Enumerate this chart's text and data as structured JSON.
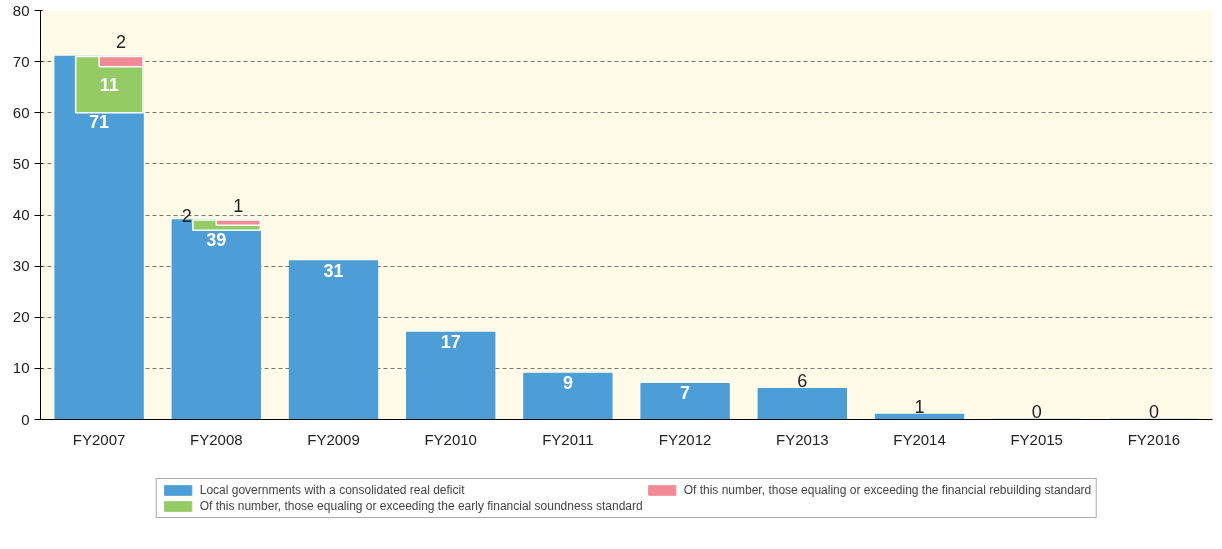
{
  "chart_data": {
    "type": "bar",
    "categories": [
      "FY2007",
      "FY2008",
      "FY2009",
      "FY2010",
      "FY2011",
      "FY2012",
      "FY2013",
      "FY2014",
      "FY2015",
      "FY2016"
    ],
    "series": [
      {
        "name": "Local governments with a consolidated real deficit",
        "color": "#4d9ed6",
        "values": [
          71,
          39,
          31,
          17,
          9,
          7,
          6,
          1,
          0,
          0
        ]
      },
      {
        "name": "Of this number, those equaling or exceeding the early financial soundness standard",
        "color": "#95cb65",
        "values": [
          11,
          2,
          null,
          null,
          null,
          null,
          null,
          null,
          null,
          null
        ],
        "base": [
          60,
          37,
          null,
          null,
          null,
          null,
          null,
          null,
          null,
          null
        ]
      },
      {
        "name": "Of this number, those equaling or exceeding the financial rebuilding standard",
        "color": "#f28a96",
        "values": [
          2,
          1,
          null,
          null,
          null,
          null,
          null,
          null,
          null,
          null
        ],
        "base": [
          69,
          38,
          null,
          null,
          null,
          null,
          null,
          null,
          null,
          null
        ]
      }
    ],
    "ylim": [
      0,
      80
    ],
    "yticks": [
      0,
      10,
      20,
      30,
      40,
      50,
      60,
      70,
      80
    ],
    "grid": "y",
    "legend": "bottom",
    "data_labels": true
  }
}
